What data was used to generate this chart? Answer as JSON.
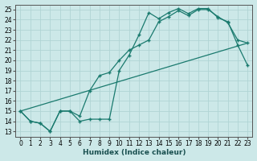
{
  "title": "",
  "xlabel": "Humidex (Indice chaleur)",
  "bg_color": "#cce8e8",
  "line_color": "#1a7a6e",
  "grid_color": "#b0d4d4",
  "xlim": [
    -0.5,
    23.5
  ],
  "ylim": [
    12.5,
    25.5
  ],
  "xticks": [
    0,
    1,
    2,
    3,
    4,
    5,
    6,
    7,
    8,
    9,
    10,
    11,
    12,
    13,
    14,
    15,
    16,
    17,
    18,
    19,
    20,
    21,
    22,
    23
  ],
  "yticks": [
    13,
    14,
    15,
    16,
    17,
    18,
    19,
    20,
    21,
    22,
    23,
    24,
    25
  ],
  "line1_x": [
    0,
    1,
    2,
    3,
    4,
    5,
    6,
    7,
    8,
    9,
    10,
    11,
    12,
    13,
    14,
    15,
    16,
    17,
    18,
    19,
    20,
    21,
    22,
    23
  ],
  "line1_y": [
    15.0,
    14.0,
    13.8,
    13.0,
    15.0,
    15.0,
    14.0,
    14.2,
    14.2,
    14.2,
    19.0,
    20.5,
    22.5,
    24.7,
    24.1,
    24.7,
    25.1,
    24.6,
    25.1,
    25.1,
    24.2,
    23.8,
    21.5,
    19.5
  ],
  "line2_x": [
    0,
    1,
    2,
    3,
    4,
    5,
    6,
    7,
    8,
    9,
    10,
    11,
    12,
    13,
    14,
    15,
    16,
    17,
    18,
    19,
    20,
    21,
    22,
    23
  ],
  "line2_y": [
    15.0,
    14.0,
    13.8,
    13.0,
    15.0,
    15.0,
    14.5,
    17.0,
    18.5,
    18.8,
    20.0,
    21.0,
    21.5,
    22.0,
    23.8,
    24.3,
    24.9,
    24.4,
    25.0,
    25.0,
    24.3,
    23.7,
    22.0,
    21.7
  ],
  "line3_x": [
    0,
    23
  ],
  "line3_y": [
    15.0,
    21.7
  ]
}
